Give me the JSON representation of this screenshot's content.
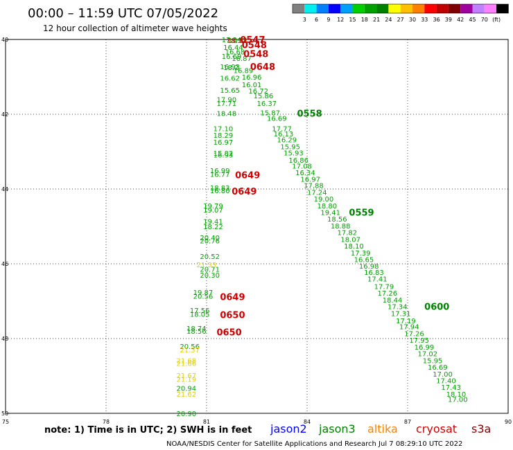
{
  "chart_data": {
    "type": "scatter",
    "title": "00:00 – 11:59 UTC 07/05/2022",
    "subtitle": "12 hour collection of altimeter wave heights",
    "x_ticks": [
      "75",
      "78",
      "81",
      "84",
      "87",
      "90"
    ],
    "y_ticks": [
      "40",
      "42",
      "44",
      "46",
      "48",
      "50"
    ],
    "xlim": [
      75,
      90
    ],
    "ylim": [
      40,
      50
    ],
    "y_inverted": true,
    "grid": true,
    "colorbar": {
      "labels": [
        "3",
        "6",
        "9",
        "12",
        "15",
        "18",
        "21",
        "24",
        "27",
        "30",
        "33",
        "36",
        "39",
        "42",
        "45",
        "70",
        "(ft)"
      ],
      "colors": [
        "#808080",
        "#00f0f0",
        "#0080ff",
        "#0000ff",
        "#00a0ff",
        "#00d000",
        "#00a000",
        "#008000",
        "#ffff00",
        "#ffc000",
        "#ff8000",
        "#ff0000",
        "#c00000",
        "#800000",
        "#a000a0",
        "#c080ff",
        "#ff80ff",
        "#000000"
      ]
    },
    "series": [
      {
        "name": "jason3",
        "color": "#00a000",
        "points": [
          {
            "x": 81.45,
            "y": 40.0,
            "v": "17.34"
          },
          {
            "x": 81.65,
            "y": 40.02,
            "v": "16.81"
          },
          {
            "x": 81.5,
            "y": 40.2,
            "v": "16.44"
          },
          {
            "x": 81.55,
            "y": 40.32,
            "v": "16.68"
          },
          {
            "x": 81.45,
            "y": 40.44,
            "v": "16.69"
          },
          {
            "x": 81.75,
            "y": 40.5,
            "v": "16.87"
          },
          {
            "x": 81.4,
            "y": 40.72,
            "v": "16.93"
          },
          {
            "x": 81.5,
            "y": 40.74,
            "v": "18.2"
          },
          {
            "x": 81.8,
            "y": 40.82,
            "v": "16.89"
          },
          {
            "x": 81.4,
            "y": 41.03,
            "v": "16.62"
          },
          {
            "x": 82.05,
            "y": 41.0,
            "v": "16.96"
          },
          {
            "x": 82.05,
            "y": 41.2,
            "v": "16.01"
          },
          {
            "x": 81.4,
            "y": 41.35,
            "v": "15.65"
          },
          {
            "x": 82.25,
            "y": 41.37,
            "v": "16.72"
          },
          {
            "x": 81.3,
            "y": 41.6,
            "v": "17.90"
          },
          {
            "x": 82.4,
            "y": 41.5,
            "v": "15.86"
          },
          {
            "x": 81.3,
            "y": 41.7,
            "v": "17.71"
          },
          {
            "x": 82.5,
            "y": 41.7,
            "v": "16.37"
          },
          {
            "x": 81.3,
            "y": 41.97,
            "v": "18.48"
          },
          {
            "x": 82.6,
            "y": 41.95,
            "v": "15.87"
          },
          {
            "x": 82.8,
            "y": 42.1,
            "v": "16.69"
          },
          {
            "x": 81.2,
            "y": 42.38,
            "v": "17.10"
          },
          {
            "x": 82.95,
            "y": 42.38,
            "v": "17.77"
          },
          {
            "x": 81.2,
            "y": 42.56,
            "v": "18.29"
          },
          {
            "x": 83.0,
            "y": 42.52,
            "v": "16.13"
          },
          {
            "x": 81.2,
            "y": 42.74,
            "v": "16.97"
          },
          {
            "x": 83.1,
            "y": 42.68,
            "v": "16.29"
          },
          {
            "x": 83.2,
            "y": 42.86,
            "v": "15.95"
          },
          {
            "x": 81.2,
            "y": 43.04,
            "v": "15.82"
          },
          {
            "x": 81.2,
            "y": 43.08,
            "v": "16.93"
          },
          {
            "x": 83.3,
            "y": 43.03,
            "v": "15.93"
          },
          {
            "x": 83.45,
            "y": 43.22,
            "v": "16.86"
          },
          {
            "x": 83.55,
            "y": 43.38,
            "v": "17.08"
          },
          {
            "x": 81.1,
            "y": 43.5,
            "v": "16.99"
          },
          {
            "x": 81.1,
            "y": 43.6,
            "v": "16.77"
          },
          {
            "x": 83.65,
            "y": 43.56,
            "v": "16.34"
          },
          {
            "x": 83.8,
            "y": 43.73,
            "v": "16.97"
          },
          {
            "x": 81.1,
            "y": 43.96,
            "v": "18.83"
          },
          {
            "x": 81.1,
            "y": 44.04,
            "v": "16.80"
          },
          {
            "x": 83.9,
            "y": 43.9,
            "v": "17.88"
          },
          {
            "x": 84.0,
            "y": 44.08,
            "v": "17.24"
          },
          {
            "x": 84.2,
            "y": 44.26,
            "v": "19.00"
          },
          {
            "x": 80.9,
            "y": 44.44,
            "v": "19.79"
          },
          {
            "x": 80.9,
            "y": 44.56,
            "v": "19.07"
          },
          {
            "x": 84.3,
            "y": 44.44,
            "v": "18.80"
          },
          {
            "x": 84.4,
            "y": 44.62,
            "v": "19.41"
          },
          {
            "x": 80.9,
            "y": 44.86,
            "v": "19.41"
          },
          {
            "x": 84.6,
            "y": 44.8,
            "v": "18.56"
          },
          {
            "x": 80.9,
            "y": 45.0,
            "v": "18.22"
          },
          {
            "x": 84.7,
            "y": 44.98,
            "v": "18.88"
          },
          {
            "x": 84.9,
            "y": 45.16,
            "v": "17.82"
          },
          {
            "x": 80.8,
            "y": 45.3,
            "v": "20.40"
          },
          {
            "x": 80.8,
            "y": 45.38,
            "v": "20.76"
          },
          {
            "x": 85.0,
            "y": 45.34,
            "v": "18.07"
          },
          {
            "x": 85.1,
            "y": 45.52,
            "v": "18.10"
          },
          {
            "x": 85.3,
            "y": 45.7,
            "v": "17.39"
          },
          {
            "x": 80.8,
            "y": 45.8,
            "v": "20.52"
          },
          {
            "x": 85.4,
            "y": 45.88,
            "v": "16.65"
          },
          {
            "x": 85.55,
            "y": 46.06,
            "v": "16.98"
          },
          {
            "x": 80.8,
            "y": 46.14,
            "v": "20.71"
          },
          {
            "x": 80.8,
            "y": 46.3,
            "v": "20.30"
          },
          {
            "x": 85.7,
            "y": 46.22,
            "v": "16.83"
          },
          {
            "x": 85.8,
            "y": 46.4,
            "v": "17.41"
          },
          {
            "x": 86.0,
            "y": 46.6,
            "v": "17.79"
          },
          {
            "x": 80.6,
            "y": 46.76,
            "v": "19.87"
          },
          {
            "x": 80.6,
            "y": 46.86,
            "v": "20.56"
          },
          {
            "x": 86.1,
            "y": 46.78,
            "v": "17.26"
          },
          {
            "x": 86.25,
            "y": 46.96,
            "v": "18.44"
          },
          {
            "x": 80.5,
            "y": 47.24,
            "v": "17.56"
          },
          {
            "x": 80.5,
            "y": 47.34,
            "v": "18.05"
          },
          {
            "x": 86.4,
            "y": 47.14,
            "v": "17.34"
          },
          {
            "x": 86.5,
            "y": 47.32,
            "v": "17.31"
          },
          {
            "x": 86.65,
            "y": 47.52,
            "v": "17.19"
          },
          {
            "x": 80.4,
            "y": 47.72,
            "v": "18.74"
          },
          {
            "x": 80.4,
            "y": 47.8,
            "v": "18.56"
          },
          {
            "x": 86.75,
            "y": 47.68,
            "v": "17.94"
          },
          {
            "x": 86.9,
            "y": 47.86,
            "v": "17.26"
          },
          {
            "x": 87.05,
            "y": 48.04,
            "v": "17.95"
          },
          {
            "x": 80.2,
            "y": 48.2,
            "v": "20.56"
          },
          {
            "x": 87.2,
            "y": 48.22,
            "v": "16.99"
          },
          {
            "x": 87.3,
            "y": 48.4,
            "v": "17.02"
          },
          {
            "x": 87.45,
            "y": 48.58,
            "v": "15.95"
          },
          {
            "x": 87.6,
            "y": 48.76,
            "v": "16.69"
          },
          {
            "x": 87.75,
            "y": 48.94,
            "v": "17.00"
          },
          {
            "x": 87.85,
            "y": 49.12,
            "v": "17.40"
          },
          {
            "x": 80.1,
            "y": 49.32,
            "v": "20.94"
          },
          {
            "x": 88.0,
            "y": 49.3,
            "v": "17.43"
          },
          {
            "x": 88.15,
            "y": 49.48,
            "v": "18.10"
          },
          {
            "x": 88.2,
            "y": 49.62,
            "v": "17.00"
          },
          {
            "x": 80.1,
            "y": 50.0,
            "v": "20.90"
          }
        ]
      },
      {
        "name": "altika",
        "color": "#e0d000",
        "points": [
          {
            "x": 80.7,
            "y": 46.02,
            "v": "21.33"
          },
          {
            "x": 80.2,
            "y": 48.3,
            "v": "21.37"
          },
          {
            "x": 80.1,
            "y": 48.58,
            "v": "21.68"
          },
          {
            "x": 80.1,
            "y": 48.66,
            "v": "21.66"
          },
          {
            "x": 80.1,
            "y": 48.98,
            "v": "21.67"
          },
          {
            "x": 80.1,
            "y": 49.08,
            "v": "21.19"
          },
          {
            "x": 80.1,
            "y": 49.48,
            "v": "21.62"
          }
        ]
      },
      {
        "name": "cryosat",
        "color": "#d00000",
        "points": [
          {
            "x": 81.6,
            "y": 40.02,
            "v": "18.12"
          }
        ]
      }
    ],
    "pass_labels": [
      {
        "text": "0547",
        "x": 82.0,
        "y": 40.0,
        "color": "#d00000"
      },
      {
        "text": "0548",
        "x": 82.05,
        "y": 40.14,
        "color": "#d00000"
      },
      {
        "text": "0548",
        "x": 82.1,
        "y": 40.38,
        "color": "#d00000"
      },
      {
        "text": "0648",
        "x": 82.3,
        "y": 40.72,
        "color": "#d00000"
      },
      {
        "text": "0558",
        "x": 83.7,
        "y": 41.97,
        "color": "#008000"
      },
      {
        "text": "0649",
        "x": 81.85,
        "y": 43.62,
        "color": "#d00000"
      },
      {
        "text": "0649",
        "x": 81.75,
        "y": 44.06,
        "color": "#d00000"
      },
      {
        "text": "0559",
        "x": 85.25,
        "y": 44.62,
        "color": "#008000"
      },
      {
        "text": "0649",
        "x": 81.4,
        "y": 46.88,
        "color": "#d00000"
      },
      {
        "text": "0650",
        "x": 81.4,
        "y": 47.36,
        "color": "#d00000"
      },
      {
        "text": "0650",
        "x": 81.3,
        "y": 47.82,
        "color": "#d00000"
      },
      {
        "text": "0600",
        "x": 87.5,
        "y": 47.14,
        "color": "#008000"
      }
    ],
    "note": "note: 1) Time is in UTC; 2) SWH is in feet",
    "legend": [
      {
        "name": "jason2",
        "color": "#0000ff"
      },
      {
        "name": "jason3",
        "color": "#008000"
      },
      {
        "name": "altika",
        "color": "#ff8000"
      },
      {
        "name": "cryosat",
        "color": "#d00000"
      },
      {
        "name": "s3a",
        "color": "#800000"
      }
    ],
    "credit": "NOAA/NESDIS Center for Satellite Applications and Research     Jul  7 08:29:10 UTC 2022"
  }
}
